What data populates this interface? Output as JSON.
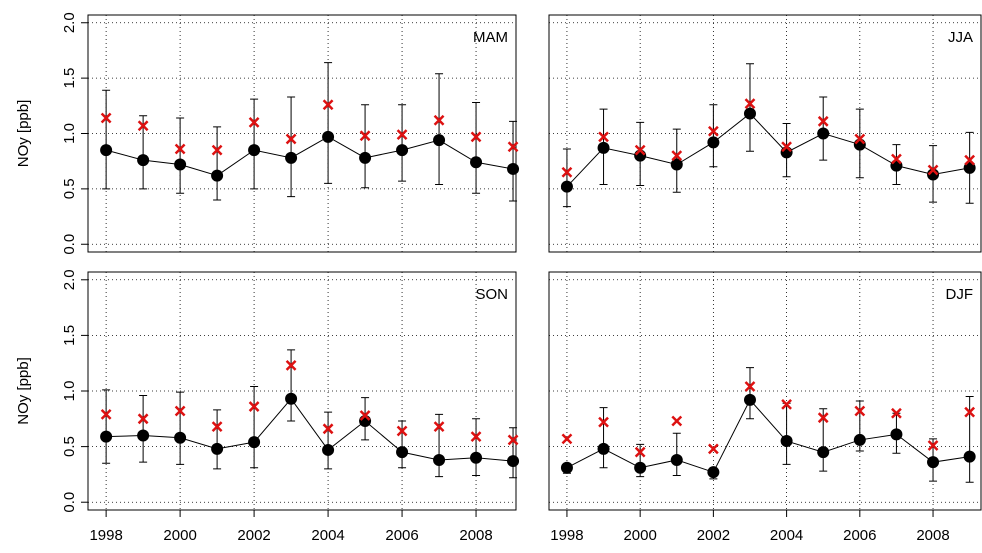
{
  "chart_data": [
    {
      "type": "line",
      "label": "MAM",
      "ylabel": "NOy [ppb]",
      "show_xtick_labels": false,
      "show_ytick_labels": true,
      "x": [
        1998,
        1999,
        2000,
        2001,
        2002,
        2003,
        2004,
        2005,
        2006,
        2007,
        2008,
        2009
      ],
      "xlim": [
        1997.51,
        2009.08
      ],
      "xticks": [
        1998,
        2000,
        2002,
        2004,
        2006,
        2008
      ],
      "ylim": [
        -0.07,
        2.07
      ],
      "yticks": [
        {
          "value": 0,
          "label": "0.0"
        },
        {
          "value": 0.5,
          "label": "0.5"
        },
        {
          "value": 1,
          "label": "1.0"
        },
        {
          "value": 1.5,
          "label": "1.5"
        },
        {
          "value": 2,
          "label": "2.0"
        }
      ],
      "grid": true,
      "series": [
        {
          "color": "#000000",
          "marker": "circle",
          "line": true,
          "values": [
            0.85,
            0.76,
            0.72,
            0.62,
            0.85,
            0.78,
            0.97,
            0.78,
            0.85,
            0.94,
            0.74,
            0.68
          ],
          "lower": [
            0.5,
            0.5,
            0.46,
            0.4,
            0.5,
            0.43,
            0.55,
            0.51,
            0.57,
            0.54,
            0.46,
            0.39
          ],
          "upper": [
            1.39,
            1.16,
            1.14,
            1.06,
            1.31,
            1.33,
            1.64,
            1.26,
            1.26,
            1.54,
            1.28,
            1.11
          ]
        },
        {
          "color": "#dd1111",
          "marker": "x",
          "line": false,
          "values": [
            1.14,
            1.07,
            0.86,
            0.85,
            1.1,
            0.95,
            1.26,
            0.98,
            0.99,
            1.12,
            0.97,
            0.88
          ]
        }
      ]
    },
    {
      "type": "line",
      "label": "JJA",
      "show_xtick_labels": false,
      "show_ytick_labels": false,
      "x": [
        1998,
        1999,
        2000,
        2001,
        2002,
        2003,
        2004,
        2005,
        2006,
        2007,
        2008,
        2009
      ],
      "xlim": [
        1997.51,
        2009.31
      ],
      "xticks": [
        1998,
        2000,
        2002,
        2004,
        2006,
        2008
      ],
      "ylim": [
        -0.07,
        2.07
      ],
      "yticks": [
        0,
        0.5,
        1,
        1.5,
        2
      ],
      "grid": true,
      "series": [
        {
          "color": "#000000",
          "marker": "circle",
          "line": true,
          "values": [
            0.52,
            0.87,
            0.8,
            0.72,
            0.92,
            1.18,
            0.83,
            1.0,
            0.9,
            0.71,
            0.63,
            0.69
          ],
          "lower": [
            0.34,
            0.54,
            0.53,
            0.47,
            0.7,
            0.84,
            0.61,
            0.76,
            0.6,
            0.54,
            0.38,
            0.37
          ],
          "upper": [
            0.86,
            1.22,
            1.1,
            1.04,
            1.26,
            1.63,
            1.09,
            1.33,
            1.22,
            0.9,
            0.89,
            1.01
          ]
        },
        {
          "color": "#dd1111",
          "marker": "x",
          "line": false,
          "values": [
            0.65,
            0.97,
            0.85,
            0.8,
            1.02,
            1.27,
            0.88,
            1.11,
            0.95,
            0.77,
            0.67,
            0.76
          ]
        }
      ]
    },
    {
      "type": "line",
      "label": "SON",
      "ylabel": "NOy [ppb]",
      "show_xtick_labels": true,
      "show_ytick_labels": true,
      "x": [
        1998,
        1999,
        2000,
        2001,
        2002,
        2003,
        2004,
        2005,
        2006,
        2007,
        2008,
        2009
      ],
      "xlim": [
        1997.51,
        2009.08
      ],
      "xticks": [
        1998,
        2000,
        2002,
        2004,
        2006,
        2008
      ],
      "ylim": [
        -0.07,
        2.07
      ],
      "yticks": [
        {
          "value": 0,
          "label": "0.0"
        },
        {
          "value": 0.5,
          "label": "0.5"
        },
        {
          "value": 1,
          "label": "1.0"
        },
        {
          "value": 1.5,
          "label": "1.5"
        },
        {
          "value": 2,
          "label": "2.0"
        }
      ],
      "grid": true,
      "series": [
        {
          "color": "#000000",
          "marker": "circle",
          "line": true,
          "values": [
            0.59,
            0.6,
            0.58,
            0.48,
            0.54,
            0.93,
            0.47,
            0.73,
            0.45,
            0.38,
            0.4,
            0.37
          ],
          "lower": [
            0.35,
            0.36,
            0.34,
            0.3,
            0.31,
            0.73,
            0.3,
            0.56,
            0.31,
            0.23,
            0.24,
            0.22
          ],
          "upper": [
            1.01,
            0.96,
            0.99,
            0.83,
            1.04,
            1.37,
            0.81,
            0.94,
            0.73,
            0.79,
            0.75,
            0.67
          ]
        },
        {
          "color": "#dd1111",
          "marker": "x",
          "line": false,
          "values": [
            0.79,
            0.75,
            0.82,
            0.68,
            0.86,
            1.23,
            0.66,
            0.78,
            0.64,
            0.68,
            0.59,
            0.56
          ]
        }
      ]
    },
    {
      "type": "line",
      "label": "DJF",
      "show_xtick_labels": true,
      "show_ytick_labels": false,
      "x": [
        1998,
        1999,
        2000,
        2001,
        2002,
        2003,
        2004,
        2005,
        2006,
        2007,
        2008,
        2009
      ],
      "xlim": [
        1997.51,
        2009.31
      ],
      "xticks": [
        1998,
        2000,
        2002,
        2004,
        2006,
        2008
      ],
      "ylim": [
        -0.07,
        2.07
      ],
      "yticks": [
        0,
        0.5,
        1,
        1.5,
        2
      ],
      "grid": true,
      "series": [
        {
          "color": "#000000",
          "marker": "circle",
          "line": true,
          "values": [
            0.31,
            0.48,
            0.31,
            0.38,
            0.27,
            0.92,
            0.55,
            0.45,
            0.56,
            0.61,
            0.36,
            0.41
          ],
          "lower": [
            0.26,
            0.31,
            0.23,
            0.24,
            0.21,
            0.75,
            0.34,
            0.28,
            0.46,
            0.44,
            0.19,
            0.18
          ],
          "upper": [
            0.34,
            0.85,
            0.52,
            0.62,
            0.3,
            1.21,
            0.89,
            0.84,
            0.91,
            0.8,
            0.57,
            0.95
          ]
        },
        {
          "color": "#dd1111",
          "marker": "x",
          "line": false,
          "values": [
            0.57,
            0.72,
            0.45,
            0.73,
            0.48,
            1.04,
            0.88,
            0.76,
            0.82,
            0.8,
            0.51,
            0.81
          ]
        }
      ]
    }
  ]
}
